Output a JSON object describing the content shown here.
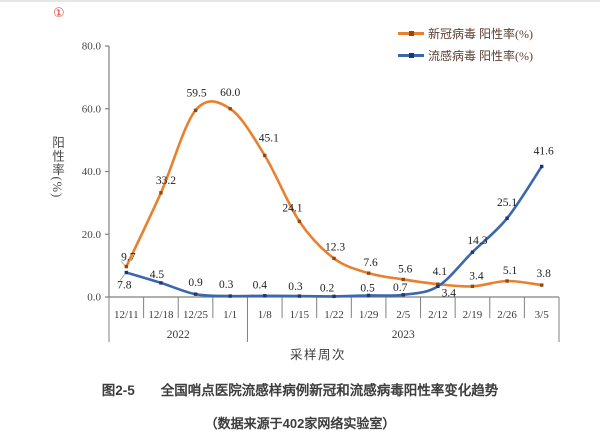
{
  "page": {
    "note_marker": "①"
  },
  "y_axis": {
    "title_chars": "阳性率",
    "title_unit": "(%)",
    "ticks": [
      "0.0",
      "20.0",
      "40.0",
      "60.0",
      "80.0"
    ],
    "max": 80
  },
  "x_axis": {
    "title": "采样周次",
    "year_groups": [
      {
        "label": "2022",
        "span": 4
      },
      {
        "label": "2023",
        "span": 9
      }
    ]
  },
  "chart_data": {
    "type": "line",
    "x": [
      "12/11",
      "12/18",
      "12/25",
      "1/1",
      "1/8",
      "1/15",
      "1/22",
      "1/29",
      "2/5",
      "2/12",
      "2/19",
      "2/26",
      "3/5"
    ],
    "series": [
      {
        "name": "新冠病毒 阳性率(%)",
        "color": "#E8802F",
        "marker_color": "#8F4A10",
        "values": [
          9.7,
          33.2,
          59.5,
          60.0,
          45.1,
          24.1,
          12.3,
          7.6,
          5.6,
          4.1,
          3.4,
          5.1,
          3.8
        ]
      },
      {
        "name": "流感病毒 阳性率(%)",
        "color": "#3C67AE",
        "marker_color": "#1F3864",
        "values": [
          7.8,
          4.5,
          0.9,
          0.3,
          0.4,
          0.3,
          0.2,
          0.5,
          0.7,
          3.4,
          14.3,
          25.1,
          41.6
        ]
      }
    ],
    "ylim": [
      0,
      80
    ],
    "ylabel": "阳性率(%)",
    "xlabel": "采样周次",
    "title": "全国哨点医院流感样病例新冠和流感病毒阳性率变化趋势",
    "legend_position": "top-right",
    "grid": false
  },
  "caption": {
    "fig_label": "图2-5",
    "title": "全国哨点医院流感样病例新冠和流感病毒阳性率变化趋势",
    "source": "（数据来源于402家网络实验室）"
  },
  "colors": {
    "axis": "#808080",
    "tick_text": "#454545",
    "data_label_text": "#1f1f1f",
    "legend_text": "#5c4033",
    "caption_text": "#3d3d3d"
  }
}
